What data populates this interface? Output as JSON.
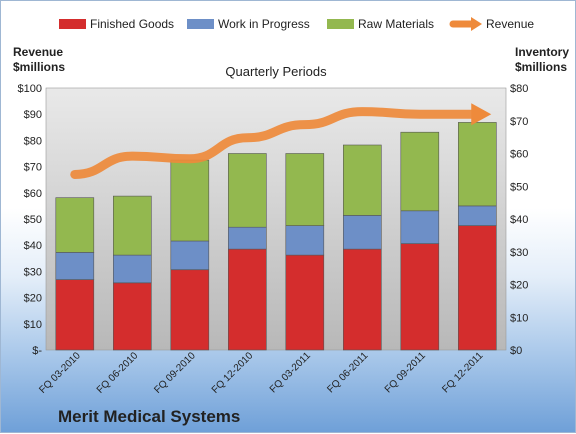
{
  "chart_data": {
    "type": "bar",
    "stacked": true,
    "title": "Quarterly Periods",
    "company": "Merit Medical Systems",
    "left_axis": {
      "label_line1": "Revenue",
      "label_line2": "$millions",
      "ylim": [
        0,
        100
      ],
      "step": 10,
      "tick_labels": [
        "$-",
        "$10",
        "$20",
        "$30",
        "$40",
        "$50",
        "$60",
        "$70",
        "$80",
        "$90",
        "$100"
      ]
    },
    "right_axis": {
      "label_line1": "Inventory",
      "label_line2": "$millions",
      "ylim": [
        0,
        80
      ],
      "step": 10,
      "tick_labels": [
        "$0",
        "$10",
        "$20",
        "$30",
        "$40",
        "$50",
        "$60",
        "$70",
        "$80"
      ]
    },
    "categories": [
      "FQ 03-2010",
      "FQ 06-2010",
      "FQ 09-2010",
      "FQ 12-2010",
      "FQ 03-2011",
      "FQ 06-2011",
      "FQ 09-2011",
      "FQ 12-2011"
    ],
    "series": [
      {
        "name": "Finished Goods",
        "axis": "right",
        "color": "#d42d2d",
        "values": [
          21.5,
          20.5,
          24.5,
          30.8,
          29.0,
          30.8,
          32.5,
          38.0
        ]
      },
      {
        "name": "Work in Progress",
        "axis": "right",
        "color": "#6d8fc7",
        "values": [
          8.3,
          8.5,
          8.8,
          6.7,
          9.0,
          10.3,
          10.0,
          6.0
        ]
      },
      {
        "name": "Raw Materials",
        "axis": "right",
        "color": "#93b84f",
        "values": [
          16.7,
          18.0,
          24.7,
          22.5,
          22.0,
          21.5,
          24.0,
          25.5
        ]
      },
      {
        "name": "Revenue",
        "axis": "left",
        "type": "line",
        "color": "#ee8a3b",
        "values": [
          67,
          74,
          73,
          81,
          86,
          91,
          90,
          90
        ]
      }
    ],
    "legend_position": "top",
    "grid": false
  }
}
